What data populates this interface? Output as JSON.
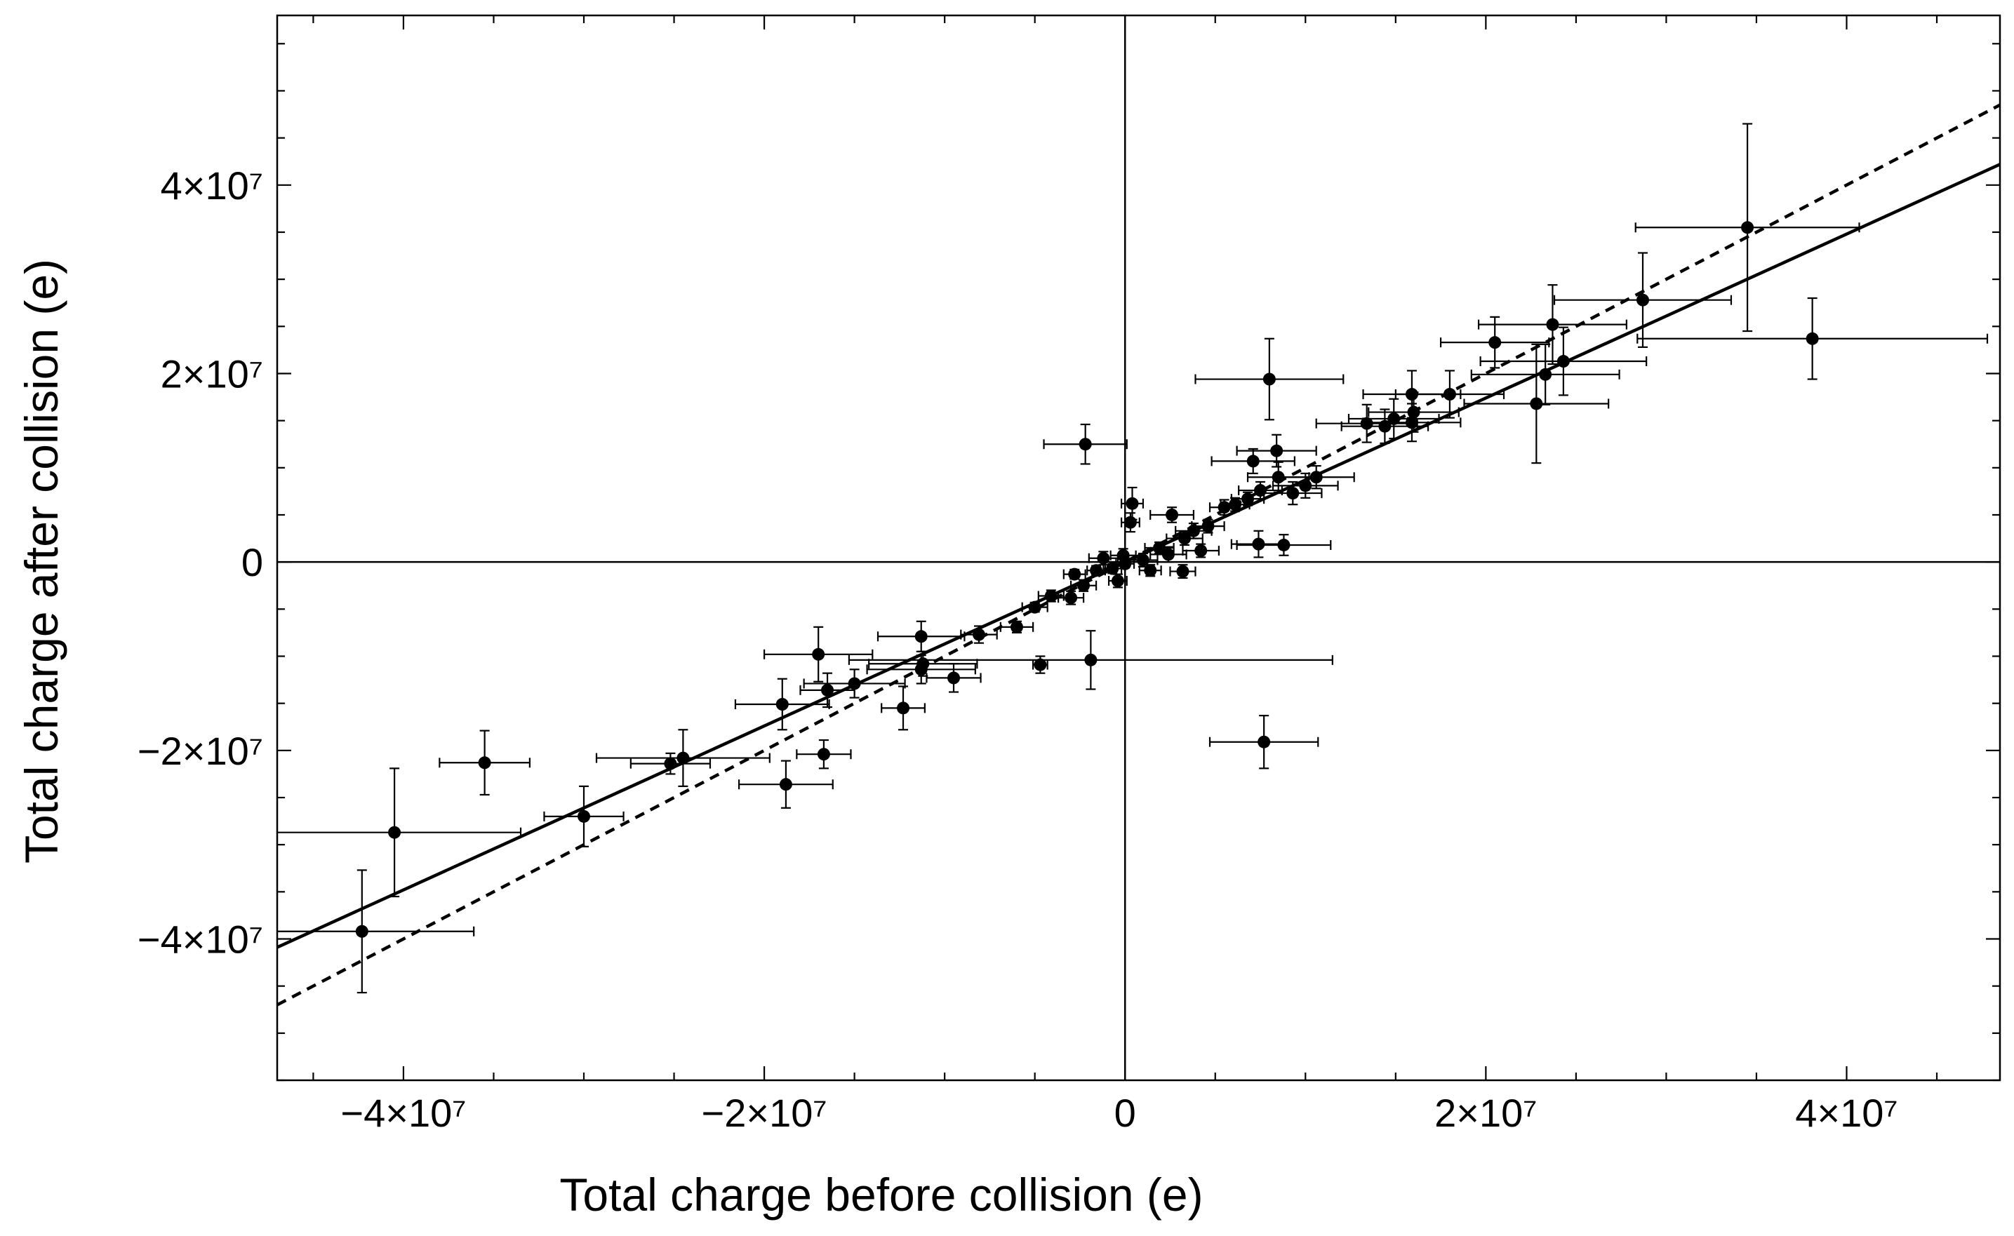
{
  "chart_data": {
    "type": "scatter",
    "title": "",
    "xlabel": "Total charge before collision (e)",
    "ylabel": "Total charge after collision (e)",
    "xlim": [
      -47000000,
      48500000
    ],
    "ylim": [
      -55000000,
      58000000
    ],
    "x_ticks": [
      {
        "value": -40000000,
        "label": "−4×10⁷"
      },
      {
        "value": -20000000,
        "label": "−2×10⁷"
      },
      {
        "value": 0,
        "label": "0"
      },
      {
        "value": 20000000,
        "label": "2×10⁷"
      },
      {
        "value": 40000000,
        "label": "4×10⁷"
      }
    ],
    "y_ticks": [
      {
        "value": 40000000,
        "label": "4×10⁷"
      },
      {
        "value": 20000000,
        "label": "2×10⁷"
      },
      {
        "value": 0,
        "label": "0"
      },
      {
        "value": -20000000,
        "label": "−2×10⁷"
      },
      {
        "value": -40000000,
        "label": "−4×10⁷"
      }
    ],
    "reference_lines": [
      {
        "name": "fit-line",
        "style": "solid",
        "slope": 0.87,
        "intercept": 0
      },
      {
        "name": "identity-line",
        "style": "dashed",
        "slope": 1.0,
        "intercept": 0
      }
    ],
    "points": [
      {
        "x": -42300000,
        "y": -39200000,
        "xerr": 6200000,
        "yerr": 6500000
      },
      {
        "x": -40500000,
        "y": -28700000,
        "xerr": 7000000,
        "yerr": 6800000
      },
      {
        "x": -35500000,
        "y": -21300000,
        "xerr": 2500000,
        "yerr": 3400000
      },
      {
        "x": -30000000,
        "y": -27000000,
        "xerr": 2200000,
        "yerr": 3200000
      },
      {
        "x": -25200000,
        "y": -21400000,
        "xerr": 2200000,
        "yerr": 1100000
      },
      {
        "x": -24500000,
        "y": -20800000,
        "xerr": 4800000,
        "yerr": 3000000
      },
      {
        "x": -19000000,
        "y": -15100000,
        "xerr": 2600000,
        "yerr": 2700000
      },
      {
        "x": -18800000,
        "y": -23600000,
        "xerr": 2600000,
        "yerr": 2500000
      },
      {
        "x": -17000000,
        "y": -9800000,
        "xerr": 3000000,
        "yerr": 2900000
      },
      {
        "x": -16500000,
        "y": -13600000,
        "xerr": 1500000,
        "yerr": 1800000
      },
      {
        "x": -16700000,
        "y": -20400000,
        "xerr": 1500000,
        "yerr": 1500000
      },
      {
        "x": -15000000,
        "y": -12900000,
        "xerr": 2800000,
        "yerr": 1500000
      },
      {
        "x": -12300000,
        "y": -15500000,
        "xerr": 1200000,
        "yerr": 2300000
      },
      {
        "x": -11300000,
        "y": -7900000,
        "xerr": 2400000,
        "yerr": 1600000
      },
      {
        "x": -11300000,
        "y": -11400000,
        "xerr": 3000000,
        "yerr": 1500000
      },
      {
        "x": -11200000,
        "y": -10800000,
        "xerr": 3000000,
        "yerr": 1300000
      },
      {
        "x": -9500000,
        "y": -12300000,
        "xerr": 1500000,
        "yerr": 1500000
      },
      {
        "x": -8100000,
        "y": -7700000,
        "xerr": 1000000,
        "yerr": 900000
      },
      {
        "x": -6000000,
        "y": -6900000,
        "xerr": 900000,
        "yerr": 600000
      },
      {
        "x": -4700000,
        "y": -10900000,
        "xerr": 400000,
        "yerr": 900000
      },
      {
        "x": -5000000,
        "y": -4800000,
        "xerr": 700000,
        "yerr": 500000
      },
      {
        "x": -4100000,
        "y": -3600000,
        "xerr": 700000,
        "yerr": 600000
      },
      {
        "x": -3000000,
        "y": -3800000,
        "xerr": 700000,
        "yerr": 700000
      },
      {
        "x": -2800000,
        "y": -1300000,
        "xerr": 600000,
        "yerr": 500000
      },
      {
        "x": -2300000,
        "y": -2500000,
        "xerr": 700000,
        "yerr": 600000
      },
      {
        "x": -1900000,
        "y": -10400000,
        "xerr": 13400000,
        "yerr": 3100000
      },
      {
        "x": -2200000,
        "y": 12500000,
        "xerr": 2300000,
        "yerr": 2100000
      },
      {
        "x": -1600000,
        "y": -900000,
        "xerr": 500000,
        "yerr": 500000
      },
      {
        "x": -1200000,
        "y": 400000,
        "xerr": 800000,
        "yerr": 700000
      },
      {
        "x": -700000,
        "y": -700000,
        "xerr": 500000,
        "yerr": 500000
      },
      {
        "x": -400000,
        "y": -2000000,
        "xerr": 500000,
        "yerr": 700000
      },
      {
        "x": -100000,
        "y": 700000,
        "xerr": 700000,
        "yerr": 700000
      },
      {
        "x": 0,
        "y": -200000,
        "xerr": 500000,
        "yerr": 400000
      },
      {
        "x": 400000,
        "y": 6200000,
        "xerr": 600000,
        "yerr": 1700000
      },
      {
        "x": 300000,
        "y": 4200000,
        "xerr": 500000,
        "yerr": 1000000
      },
      {
        "x": 1000000,
        "y": 200000,
        "xerr": 800000,
        "yerr": 700000
      },
      {
        "x": 1400000,
        "y": -900000,
        "xerr": 600000,
        "yerr": 600000
      },
      {
        "x": 1900000,
        "y": 1500000,
        "xerr": 800000,
        "yerr": 600000
      },
      {
        "x": 2400000,
        "y": 800000,
        "xerr": 1000000,
        "yerr": 800000
      },
      {
        "x": 2600000,
        "y": 5000000,
        "xerr": 1200000,
        "yerr": 800000
      },
      {
        "x": 3200000,
        "y": -1000000,
        "xerr": 700000,
        "yerr": 700000
      },
      {
        "x": 3300000,
        "y": 2500000,
        "xerr": 1000000,
        "yerr": 700000
      },
      {
        "x": 3800000,
        "y": 3300000,
        "xerr": 1000000,
        "yerr": 800000
      },
      {
        "x": 4200000,
        "y": 1200000,
        "xerr": 1000000,
        "yerr": 700000
      },
      {
        "x": 4600000,
        "y": 3800000,
        "xerr": 900000,
        "yerr": 700000
      },
      {
        "x": 5500000,
        "y": 5800000,
        "xerr": 800000,
        "yerr": 800000
      },
      {
        "x": 6100000,
        "y": 6100000,
        "xerr": 800000,
        "yerr": 700000
      },
      {
        "x": 6800000,
        "y": 6700000,
        "xerr": 900000,
        "yerr": 700000
      },
      {
        "x": 7100000,
        "y": 10700000,
        "xerr": 2300000,
        "yerr": 1300000
      },
      {
        "x": 7400000,
        "y": 1900000,
        "xerr": 1500000,
        "yerr": 1400000
      },
      {
        "x": 7500000,
        "y": 7600000,
        "xerr": 1200000,
        "yerr": 900000
      },
      {
        "x": 8000000,
        "y": 19400000,
        "xerr": 4100000,
        "yerr": 4300000
      },
      {
        "x": 7700000,
        "y": -19100000,
        "xerr": 3000000,
        "yerr": 2800000
      },
      {
        "x": 8400000,
        "y": 11800000,
        "xerr": 2200000,
        "yerr": 1700000
      },
      {
        "x": 8500000,
        "y": 9000000,
        "xerr": 1700000,
        "yerr": 1600000
      },
      {
        "x": 8800000,
        "y": 1800000,
        "xerr": 2600000,
        "yerr": 1100000
      },
      {
        "x": 9300000,
        "y": 7300000,
        "xerr": 1600000,
        "yerr": 1200000
      },
      {
        "x": 10000000,
        "y": 8100000,
        "xerr": 1800000,
        "yerr": 1300000
      },
      {
        "x": 10600000,
        "y": 9000000,
        "xerr": 2100000,
        "yerr": 1200000
      },
      {
        "x": 13400000,
        "y": 14700000,
        "xerr": 2800000,
        "yerr": 2000000
      },
      {
        "x": 14400000,
        "y": 14400000,
        "xerr": 2400000,
        "yerr": 1800000
      },
      {
        "x": 14900000,
        "y": 15200000,
        "xerr": 2500000,
        "yerr": 2100000
      },
      {
        "x": 15900000,
        "y": 14800000,
        "xerr": 2700000,
        "yerr": 2000000
      },
      {
        "x": 15900000,
        "y": 17800000,
        "xerr": 2700000,
        "yerr": 2500000
      },
      {
        "x": 16000000,
        "y": 15900000,
        "xerr": 2500000,
        "yerr": 2100000
      },
      {
        "x": 18000000,
        "y": 17800000,
        "xerr": 3000000,
        "yerr": 2500000
      },
      {
        "x": 20500000,
        "y": 23300000,
        "xerr": 3000000,
        "yerr": 2700000
      },
      {
        "x": 22800000,
        "y": 16800000,
        "xerr": 4000000,
        "yerr": 6300000
      },
      {
        "x": 23300000,
        "y": 19900000,
        "xerr": 4100000,
        "yerr": 3200000
      },
      {
        "x": 23700000,
        "y": 25200000,
        "xerr": 4100000,
        "yerr": 4200000
      },
      {
        "x": 24300000,
        "y": 21300000,
        "xerr": 4600000,
        "yerr": 3600000
      },
      {
        "x": 28700000,
        "y": 27800000,
        "xerr": 4900000,
        "yerr": 5000000
      },
      {
        "x": 34500000,
        "y": 35500000,
        "xerr": 6200000,
        "yerr": 11000000
      },
      {
        "x": 38100000,
        "y": 23700000,
        "xerr": 9700000,
        "yerr": 4300000
      }
    ]
  }
}
